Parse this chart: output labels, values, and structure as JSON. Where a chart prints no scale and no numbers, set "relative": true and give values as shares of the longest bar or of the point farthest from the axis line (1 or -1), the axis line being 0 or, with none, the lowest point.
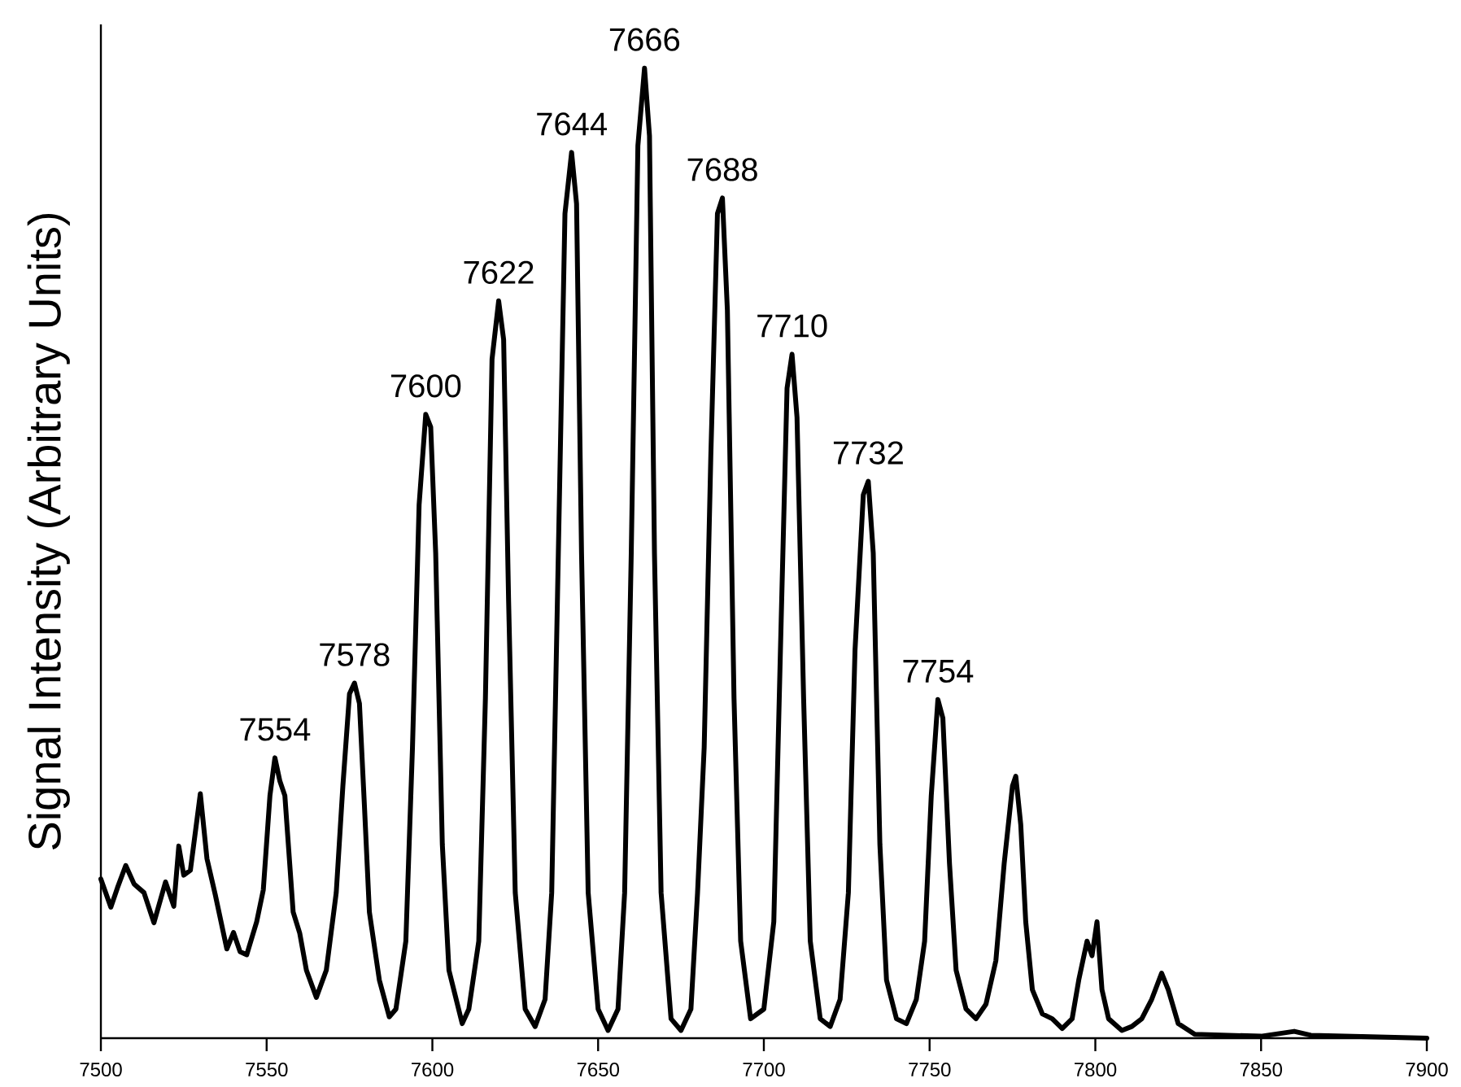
{
  "chart_data": {
    "type": "line",
    "relative": true,
    "ylabel": "Signal Intensity (Arbitrary Units)",
    "xlim": [
      7500,
      7900
    ],
    "xticks": [
      7500,
      7550,
      7600,
      7650,
      7700,
      7750,
      7800,
      7850,
      7900
    ],
    "grid": false,
    "marker": "none",
    "line_style": "solid",
    "annotations": [
      {
        "text": "7554",
        "x": 7552.5,
        "y": 0.289
      },
      {
        "text": "7578",
        "x": 7576.5,
        "y": 0.366
      },
      {
        "text": "7600",
        "x": 7598,
        "y": 0.643
      },
      {
        "text": "7622",
        "x": 7620,
        "y": 0.76
      },
      {
        "text": "7644",
        "x": 7642,
        "y": 0.913
      },
      {
        "text": "7666",
        "x": 7664,
        "y": 1.0
      },
      {
        "text": "7688",
        "x": 7687.5,
        "y": 0.866
      },
      {
        "text": "7710",
        "x": 7708.5,
        "y": 0.705
      },
      {
        "text": "7732",
        "x": 7731.5,
        "y": 0.574
      },
      {
        "text": "7754",
        "x": 7752.5,
        "y": 0.349
      }
    ],
    "series": [
      {
        "color": "#000000",
        "x": [
          7500,
          7503,
          7505,
          7507.5,
          7510,
          7513,
          7516,
          7519.5,
          7522,
          7523.5,
          7525,
          7527,
          7530,
          7532,
          7534.5,
          7538,
          7540,
          7542,
          7544,
          7547,
          7549,
          7551,
          7552.5,
          7554,
          7555.5,
          7558,
          7560,
          7562,
          7565,
          7568,
          7571,
          7573,
          7575,
          7576.5,
          7578,
          7579.5,
          7581,
          7584,
          7587,
          7589,
          7592,
          7594,
          7596,
          7598,
          7599.5,
          7601,
          7603,
          7605,
          7609,
          7611,
          7614,
          7616,
          7618,
          7620,
          7621.5,
          7623,
          7625,
          7628,
          7631,
          7634,
          7636,
          7638,
          7640,
          7642,
          7643.5,
          7645,
          7647,
          7650,
          7653,
          7656,
          7658,
          7660,
          7662,
          7664,
          7665.5,
          7667,
          7669,
          7672,
          7675,
          7678,
          7680,
          7682,
          7684,
          7686,
          7687.5,
          7689,
          7691,
          7693,
          7696,
          7700,
          7703,
          7705,
          7707,
          7708.5,
          7710,
          7712,
          7714,
          7717,
          7720,
          7723,
          7725.5,
          7727.5,
          7730,
          7731.5,
          7733,
          7735,
          7737,
          7740,
          7743,
          7746,
          7748.5,
          7750.5,
          7752.5,
          7754,
          7756,
          7758,
          7761,
          7764,
          7767,
          7770,
          7772.5,
          7775,
          7776,
          7777.5,
          7779,
          7781,
          7784,
          7787,
          7790,
          7793,
          7795,
          7797.5,
          7799,
          7800.5,
          7802,
          7804,
          7808,
          7811,
          7814,
          7817,
          7820,
          7822,
          7825,
          7830,
          7850,
          7860,
          7865,
          7900
        ],
        "values": [
          0.164,
          0.135,
          0.155,
          0.178,
          0.159,
          0.15,
          0.119,
          0.161,
          0.136,
          0.198,
          0.168,
          0.173,
          0.252,
          0.185,
          0.148,
          0.092,
          0.109,
          0.089,
          0.086,
          0.12,
          0.153,
          0.25,
          0.289,
          0.265,
          0.25,
          0.13,
          0.108,
          0.07,
          0.042,
          0.07,
          0.15,
          0.26,
          0.355,
          0.366,
          0.345,
          0.24,
          0.13,
          0.06,
          0.022,
          0.03,
          0.1,
          0.3,
          0.55,
          0.643,
          0.63,
          0.5,
          0.2,
          0.07,
          0.015,
          0.03,
          0.1,
          0.35,
          0.7,
          0.76,
          0.72,
          0.45,
          0.15,
          0.03,
          0.012,
          0.04,
          0.15,
          0.5,
          0.85,
          0.913,
          0.86,
          0.5,
          0.15,
          0.03,
          0.008,
          0.03,
          0.15,
          0.5,
          0.92,
          1.0,
          0.93,
          0.5,
          0.15,
          0.02,
          0.008,
          0.03,
          0.15,
          0.3,
          0.6,
          0.85,
          0.866,
          0.75,
          0.35,
          0.1,
          0.02,
          0.03,
          0.12,
          0.4,
          0.67,
          0.705,
          0.64,
          0.35,
          0.1,
          0.02,
          0.012,
          0.04,
          0.15,
          0.4,
          0.56,
          0.574,
          0.5,
          0.2,
          0.06,
          0.02,
          0.015,
          0.04,
          0.1,
          0.25,
          0.349,
          0.33,
          0.18,
          0.07,
          0.03,
          0.02,
          0.035,
          0.08,
          0.18,
          0.26,
          0.27,
          0.22,
          0.12,
          0.05,
          0.025,
          0.02,
          0.01,
          0.02,
          0.06,
          0.1,
          0.085,
          0.12,
          0.05,
          0.02,
          0.008,
          0.012,
          0.02,
          0.04,
          0.067,
          0.05,
          0.015,
          0.004,
          0.002,
          0.007,
          0.003,
          0.0
        ]
      }
    ]
  }
}
